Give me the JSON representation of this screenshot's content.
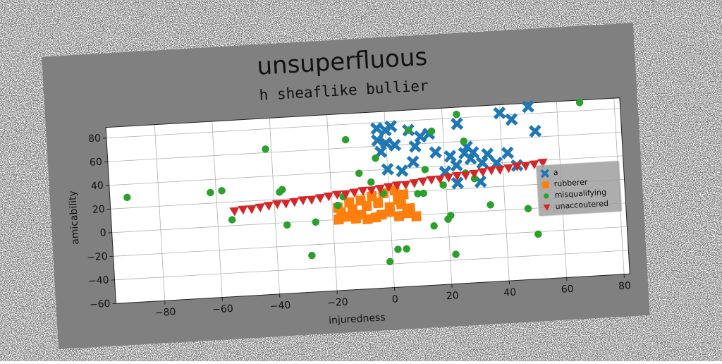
{
  "chart_data": {
    "type": "scatter",
    "title": "unsuperfluous",
    "subtitle": "h sheaflike bullier",
    "x_label": "injuredness",
    "y_label": "amicability",
    "xlim": [
      -97,
      82
    ],
    "ylim": [
      -60,
      89
    ],
    "xticks": [
      {
        "value": -80,
        "label": "−80"
      },
      {
        "value": -60,
        "label": "−60"
      },
      {
        "value": -40,
        "label": "−40"
      },
      {
        "value": -20,
        "label": "−20"
      },
      0,
      20,
      40,
      60,
      80
    ],
    "yticks": [
      {
        "value": -60,
        "label": "−60"
      },
      {
        "value": -40,
        "label": "−40"
      },
      {
        "value": -20,
        "label": "−20"
      },
      0,
      20,
      40,
      60,
      80
    ],
    "grid": true,
    "legend": "center right",
    "series": [
      {
        "name": "a",
        "color": "#1f77b4",
        "marker": "x",
        "x": [
          -3,
          0,
          2,
          -3,
          0,
          3,
          -2,
          8,
          12,
          15,
          9,
          0,
          24,
          22,
          27,
          30,
          28,
          25,
          35,
          42,
          40,
          44,
          50,
          52,
          24,
          32,
          20,
          33,
          38,
          45,
          17,
          10,
          5,
          29
        ],
        "values": [
          75,
          73,
          76,
          65,
          62,
          60,
          55,
          72,
          66,
          68,
          45,
          40,
          40,
          48,
          50,
          50,
          55,
          75,
          48,
          48,
          82,
          76,
          86,
          65,
          25,
          25,
          35,
          41,
          40,
          37,
          52,
          58,
          38,
          45
        ]
      },
      {
        "name": "rubberer",
        "color": "#ff7f0e",
        "marker": "s",
        "x": [
          -18,
          -15,
          -12,
          -10,
          -8,
          -5,
          -3,
          0,
          3,
          6,
          9,
          -17,
          -13,
          -8,
          -4,
          0,
          4,
          -10,
          -6,
          -2,
          2,
          5,
          -14,
          -18,
          7,
          3
        ],
        "values": [
          0,
          2,
          0,
          3,
          -1,
          0,
          2,
          4,
          0,
          2,
          -1,
          6,
          8,
          10,
          12,
          8,
          10,
          15,
          18,
          20,
          22,
          18,
          14,
          10,
          6,
          14
        ]
      },
      {
        "name": "misqualifying",
        "color": "#2ca02c",
        "marker": "o",
        "x": [
          -91,
          -62,
          -58,
          -55,
          -42,
          -38,
          -37,
          -36,
          -26,
          -28,
          -18,
          -14,
          -16,
          -10,
          -6,
          -4,
          -2,
          -1,
          2,
          5,
          8,
          12,
          15,
          16,
          19,
          20,
          21,
          22,
          25,
          27,
          30,
          35,
          48,
          51,
          68,
          13,
          10,
          27
        ],
        "values": [
          29,
          29,
          30,
          5,
          63,
          26,
          28,
          -2,
          -1,
          -29,
          12,
          67,
          19,
          38,
          30,
          50,
          20,
          -38,
          -28,
          -28,
          72,
          18,
          -10,
          70,
          24,
          -5,
          -2,
          -35,
          83,
          33,
          28,
          5,
          0,
          -22,
          87,
          38,
          18,
          60
        ]
      },
      {
        "name": "unaccoutered",
        "color": "#d62728",
        "marker": "v",
        "x": [
          -54,
          -51,
          -48,
          -45,
          -42,
          -39,
          -36,
          -33,
          -30,
          -27,
          -24,
          -21,
          -18,
          -15,
          -12,
          -9,
          -6,
          -3,
          0,
          3,
          6,
          9,
          12,
          15,
          18,
          21,
          24,
          27,
          30,
          33,
          36,
          39,
          42,
          45,
          48,
          51,
          54
        ],
        "values": [
          12,
          13,
          13,
          14,
          15,
          16,
          16,
          17,
          18,
          18,
          19,
          20,
          21,
          21,
          22,
          23,
          23,
          24,
          25,
          26,
          26,
          27,
          28,
          29,
          29,
          30,
          31,
          31,
          32,
          33,
          34,
          34,
          35,
          36,
          36,
          37,
          38
        ]
      }
    ]
  }
}
